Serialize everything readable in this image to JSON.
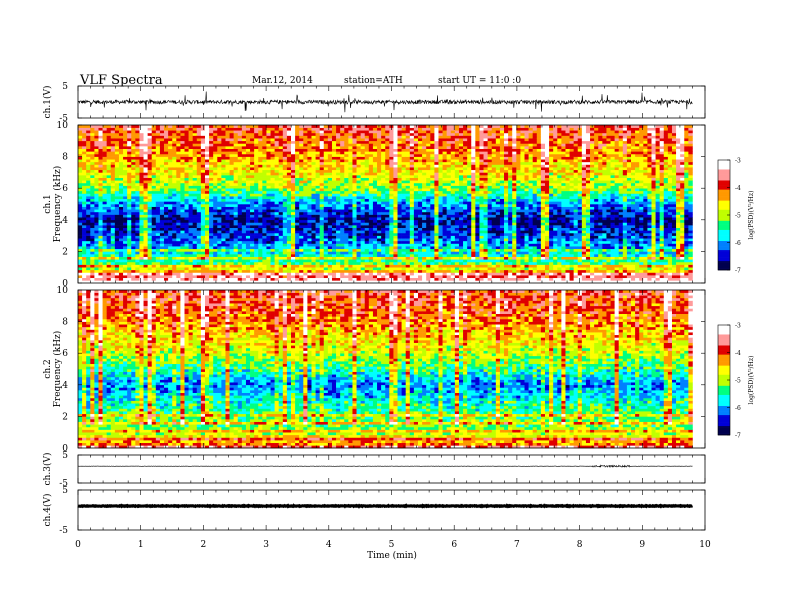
{
  "header": {
    "title": "VLF  Spectra",
    "date": "Mar.12, 2014",
    "station": "station=ATH",
    "start": "start  UT  =    11:0   :0"
  },
  "chart_data": {
    "type": "heatmap",
    "description_source": "VLF receiver, two spectrogram channels plus waveform traces",
    "xlabel": "Time  (min)",
    "xlim": [
      0,
      10
    ],
    "xticks": [
      "0",
      "1",
      "2",
      "3",
      "4",
      "5",
      "6",
      "7",
      "8",
      "9",
      "10"
    ],
    "data_end_min": 9.8,
    "panels": [
      {
        "kind": "line",
        "ylabel": "ch.1(V)",
        "ylim": [
          -5,
          5
        ],
        "yticks": [
          "5",
          "-5"
        ],
        "series": [
          {
            "baseline": 0,
            "noise_amplitude": 1.2
          }
        ]
      },
      {
        "kind": "spectrogram",
        "ylabel_top": "ch.1",
        "ylabel": "Frequency  (kHz)",
        "ylim": [
          0,
          10
        ],
        "yticks": [
          "0",
          "2",
          "4",
          "6",
          "8",
          "10"
        ],
        "colorbar": {
          "label": "log(PSD)(V²/Hz)",
          "range": [
            -7,
            -3
          ],
          "ticks": [
            "-3",
            "-4",
            "-5",
            "-6",
            "-7"
          ]
        },
        "profile_log_psd": [
          {
            "f_khz": 0.3,
            "value": -3.4
          },
          {
            "f_khz": 1.0,
            "value": -5.0
          },
          {
            "f_khz": 2.0,
            "value": -6.0
          },
          {
            "f_khz": 3.0,
            "value": -6.5
          },
          {
            "f_khz": 4.0,
            "value": -6.8
          },
          {
            "f_khz": 5.0,
            "value": -6.2
          },
          {
            "f_khz": 6.0,
            "value": -5.2
          },
          {
            "f_khz": 7.0,
            "value": -4.8
          },
          {
            "f_khz": 8.5,
            "value": -4.3
          },
          {
            "f_khz": 10.0,
            "value": -4.0
          }
        ]
      },
      {
        "kind": "spectrogram",
        "ylabel_top": "ch.2",
        "ylabel": "Frequency  (kHz)",
        "ylim": [
          0,
          10
        ],
        "yticks": [
          "0",
          "2",
          "4",
          "6",
          "8",
          "10"
        ],
        "colorbar": {
          "label": "log(PSD)(V²/Hz)",
          "range": [
            -7,
            -3
          ],
          "ticks": [
            "-3",
            "-4",
            "-5",
            "-6",
            "-7"
          ]
        },
        "profile_log_psd": [
          {
            "f_khz": 0.3,
            "value": -4.2
          },
          {
            "f_khz": 1.0,
            "value": -5.0
          },
          {
            "f_khz": 2.0,
            "value": -5.4
          },
          {
            "f_khz": 3.0,
            "value": -5.8
          },
          {
            "f_khz": 4.0,
            "value": -6.3
          },
          {
            "f_khz": 5.0,
            "value": -5.6
          },
          {
            "f_khz": 6.0,
            "value": -5.0
          },
          {
            "f_khz": 7.0,
            "value": -4.7
          },
          {
            "f_khz": 8.5,
            "value": -4.2
          },
          {
            "f_khz": 10.0,
            "value": -4.0
          }
        ]
      },
      {
        "kind": "line",
        "ylabel": "ch.3(V)",
        "ylim": [
          -5,
          5
        ],
        "yticks": [
          "5",
          "-5"
        ],
        "series": [
          {
            "baseline": 1.0,
            "noise_amplitude": 0.1,
            "burst_min": [
              8.2,
              8.8
            ]
          }
        ]
      },
      {
        "kind": "line",
        "ylabel": "ch.4(V)",
        "ylim": [
          -5,
          5
        ],
        "yticks": [
          "5",
          "-5"
        ],
        "series": [
          {
            "baseline": 1.0,
            "noise_amplitude": 0.15
          }
        ]
      }
    ],
    "colormap": [
      "#00004f",
      "#0000d8",
      "#0080ff",
      "#00ffff",
      "#00ff80",
      "#c0ff00",
      "#ffff00",
      "#ff9900",
      "#e00000",
      "#ff9a9a",
      "#ffffff"
    ],
    "grid": false,
    "legend": "colorbars at right of each spectrogram"
  }
}
